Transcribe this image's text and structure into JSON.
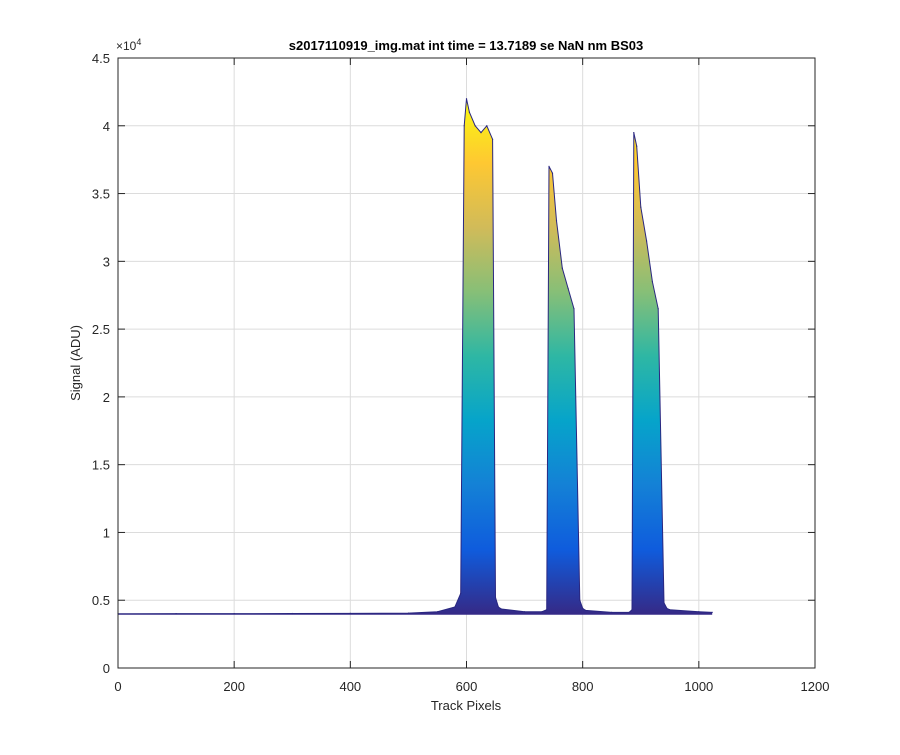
{
  "chart_data": {
    "type": "area",
    "title": "s2017110919_img.mat int time = 13.7189 se  NaN nm BS03",
    "xlabel": "Track Pixels",
    "ylabel": "Signal (ADU)",
    "xlim": [
      0,
      1200
    ],
    "ylim": [
      0,
      45000
    ],
    "y_exponent_label": "×10",
    "y_exponent_power": "4",
    "x_ticks": [
      0,
      200,
      400,
      600,
      800,
      1000,
      1200
    ],
    "x_tick_labels": [
      "0",
      "200",
      "400",
      "600",
      "800",
      "1000",
      "1200"
    ],
    "y_ticks": [
      0,
      5000,
      10000,
      15000,
      20000,
      25000,
      30000,
      35000,
      40000,
      45000
    ],
    "y_tick_labels": [
      "0",
      "0.5",
      "1",
      "1.5",
      "2",
      "2.5",
      "3",
      "3.5",
      "4",
      "4.5"
    ],
    "grid": true,
    "colormap": "parula",
    "colormap_stops": [
      "#352a87",
      "#0f5cdd",
      "#1481d6",
      "#06a4ca",
      "#2eb7a4",
      "#87bf77",
      "#d1bb59",
      "#fec832",
      "#f9fb0e"
    ],
    "baseline": 4000,
    "series": [
      {
        "x": [
          0,
          100,
          200,
          300,
          400,
          500,
          550,
          580,
          590,
          596,
          600,
          605,
          615,
          625,
          635,
          645,
          650,
          655,
          660,
          700,
          730,
          738,
          742,
          748,
          755,
          765,
          775,
          785,
          795,
          800,
          805,
          850,
          880,
          885,
          888,
          893,
          900,
          910,
          920,
          930,
          940,
          945,
          950,
          1000,
          1023
        ],
        "y": [
          4000,
          4010,
          4015,
          4020,
          4030,
          4050,
          4150,
          4500,
          5500,
          40000,
          42000,
          41000,
          40000,
          39500,
          40000,
          39000,
          5200,
          4500,
          4350,
          4150,
          4150,
          4300,
          37000,
          36500,
          33000,
          29500,
          28000,
          26500,
          5000,
          4400,
          4250,
          4100,
          4100,
          4300,
          39500,
          38500,
          34000,
          31500,
          28500,
          26500,
          4800,
          4400,
          4300,
          4150,
          4100
        ]
      }
    ]
  }
}
